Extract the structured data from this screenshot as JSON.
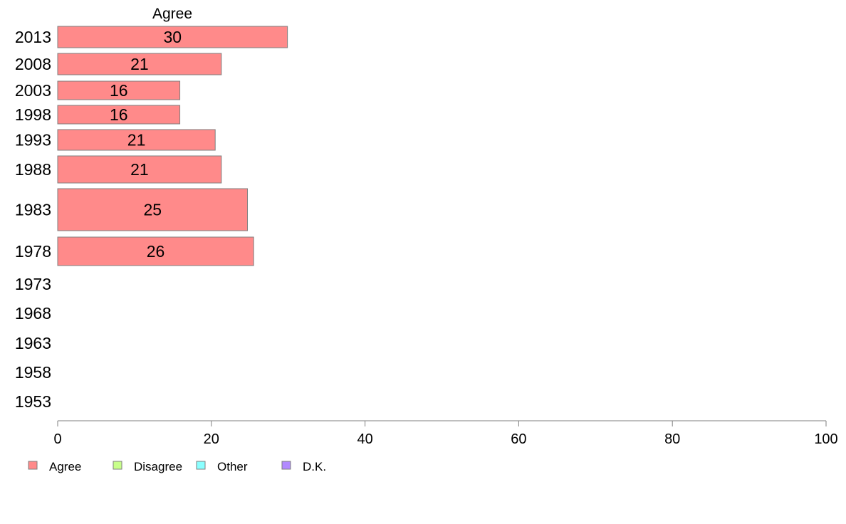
{
  "chart_data": {
    "type": "bar",
    "orientation": "horizontal",
    "column_header": "Agree",
    "categories": [
      "2013",
      "2008",
      "2003",
      "1998",
      "1993",
      "1988",
      "1983",
      "1978",
      "1973",
      "1968",
      "1963",
      "1958",
      "1953"
    ],
    "series": [
      {
        "name": "Agree",
        "values": [
          29.9,
          21.3,
          15.9,
          15.9,
          20.5,
          21.3,
          24.7,
          25.5,
          null,
          null,
          null,
          null,
          null
        ],
        "labels": [
          "30",
          "21",
          "16",
          "16",
          "21",
          "21",
          "25",
          "26",
          "",
          "",
          "",
          "",
          ""
        ]
      }
    ],
    "xlim": [
      0,
      100
    ],
    "xticks": [
      "0",
      "20",
      "40",
      "60",
      "80",
      "100"
    ],
    "grid": false,
    "legend": {
      "position": "bottom-left",
      "entries": [
        {
          "label": "Agree",
          "color": "#ff8a8a"
        },
        {
          "label": "Disagree",
          "color": "#c8ff8a"
        },
        {
          "label": "Other",
          "color": "#8affff"
        },
        {
          "label": "D.K.",
          "color": "#b28aff"
        }
      ]
    },
    "colors": {
      "bar_fill": "#ff8a8a",
      "bar_stroke": "#7f7f7f",
      "axis": "#7f7f7f"
    }
  }
}
